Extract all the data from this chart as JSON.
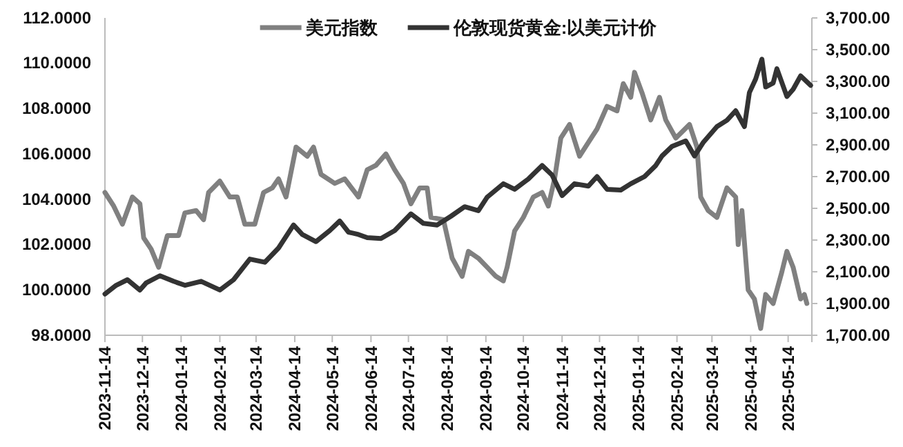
{
  "chart_data": {
    "type": "line",
    "legend": "top",
    "grid": false,
    "marker": "none",
    "line_style": "solid",
    "xlim": [
      "2023-11-14",
      "2025-06-02"
    ],
    "xticks": [
      {
        "value": "2023-11-14",
        "label": "2023-11-14"
      },
      {
        "value": "2023-12-14",
        "label": "2023-12-14"
      },
      {
        "value": "2024-01-14",
        "label": "2024-01-14"
      },
      {
        "value": "2024-02-14",
        "label": "2024-02-14"
      },
      {
        "value": "2024-03-14",
        "label": "2024-03-14"
      },
      {
        "value": "2024-04-14",
        "label": "2024-04-14"
      },
      {
        "value": "2024-05-14",
        "label": "2024-05-14"
      },
      {
        "value": "2024-06-14",
        "label": "2024-06-14"
      },
      {
        "value": "2024-07-14",
        "label": "2024-07-14"
      },
      {
        "value": "2024-08-14",
        "label": "2024-08-14"
      },
      {
        "value": "2024-09-14",
        "label": "2024-09-14"
      },
      {
        "value": "2024-10-14",
        "label": "2024-10-14"
      },
      {
        "value": "2024-11-14",
        "label": "2024-11-14"
      },
      {
        "value": "2024-12-14",
        "label": "2024-12-14"
      },
      {
        "value": "2025-01-14",
        "label": "2025-01-14"
      },
      {
        "value": "2025-02-14",
        "label": "2025-02-14"
      },
      {
        "value": "2025-03-14",
        "label": "2025-03-14"
      },
      {
        "value": "2025-04-14",
        "label": "2025-04-14"
      },
      {
        "value": "2025-05-14",
        "label": "2025-05-14"
      }
    ],
    "ylim": [
      98,
      112
    ],
    "yticks": [
      {
        "value": 98,
        "label": "98.0000"
      },
      {
        "value": 100,
        "label": "100.0000"
      },
      {
        "value": 102,
        "label": "102.0000"
      },
      {
        "value": 104,
        "label": "104.0000"
      },
      {
        "value": 106,
        "label": "106.0000"
      },
      {
        "value": 108,
        "label": "108.0000"
      },
      {
        "value": 110,
        "label": "110.0000"
      },
      {
        "value": 112,
        "label": "112.0000"
      }
    ],
    "y2lim": [
      1700,
      3700
    ],
    "y2ticks": [
      {
        "value": 1700,
        "label": "1,700.00"
      },
      {
        "value": 1900,
        "label": "1,900.00"
      },
      {
        "value": 2100,
        "label": "2,100.00"
      },
      {
        "value": 2300,
        "label": "2,300.00"
      },
      {
        "value": 2500,
        "label": "2,500.00"
      },
      {
        "value": 2700,
        "label": "2,700.00"
      },
      {
        "value": 2900,
        "label": "2,900.00"
      },
      {
        "value": 3100,
        "label": "3,100.00"
      },
      {
        "value": 3300,
        "label": "3,300.00"
      },
      {
        "value": 3500,
        "label": "3,500.00"
      },
      {
        "value": 3700,
        "label": "3,700.00"
      }
    ],
    "series": [
      {
        "name": "美元指数",
        "color": "#808080",
        "axis": "y",
        "x": [
          "2023-11-14",
          "2023-11-21",
          "2023-11-28",
          "2023-12-06",
          "2023-12-12",
          "2023-12-15",
          "2023-12-21",
          "2023-12-27",
          "2024-01-03",
          "2024-01-12",
          "2024-01-17",
          "2024-01-26",
          "2024-02-01",
          "2024-02-05",
          "2024-02-14",
          "2024-02-22",
          "2024-02-28",
          "2024-03-05",
          "2024-03-13",
          "2024-03-20",
          "2024-03-27",
          "2024-04-01",
          "2024-04-07",
          "2024-04-15",
          "2024-04-24",
          "2024-04-29",
          "2024-05-05",
          "2024-05-16",
          "2024-05-24",
          "2024-06-04",
          "2024-06-11",
          "2024-06-18",
          "2024-06-26",
          "2024-07-03",
          "2024-07-10",
          "2024-07-16",
          "2024-07-23",
          "2024-07-29",
          "2024-08-01",
          "2024-08-11",
          "2024-08-18",
          "2024-08-26",
          "2024-08-31",
          "2024-09-08",
          "2024-09-15",
          "2024-09-22",
          "2024-09-28",
          "2024-10-01",
          "2024-10-07",
          "2024-10-14",
          "2024-10-22",
          "2024-10-29",
          "2024-11-03",
          "2024-11-08",
          "2024-11-13",
          "2024-11-20",
          "2024-11-28",
          "2024-12-05",
          "2024-12-12",
          "2024-12-20",
          "2024-12-28",
          "2025-01-02",
          "2025-01-08",
          "2025-01-11",
          "2025-01-17",
          "2025-01-24",
          "2025-01-31",
          "2025-02-05",
          "2025-02-13",
          "2025-02-24",
          "2025-03-02",
          "2025-03-05",
          "2025-03-11",
          "2025-03-18",
          "2025-03-26",
          "2025-04-02",
          "2025-04-04",
          "2025-04-07",
          "2025-04-12",
          "2025-04-17",
          "2025-04-22",
          "2025-04-26",
          "2025-05-02",
          "2025-05-09",
          "2025-05-13",
          "2025-05-18",
          "2025-05-24",
          "2025-05-27",
          "2025-05-29"
        ],
        "values": [
          104.3,
          103.7,
          102.9,
          104.1,
          103.8,
          102.3,
          101.8,
          101.0,
          102.4,
          102.4,
          103.4,
          103.5,
          103.1,
          104.3,
          104.8,
          104.1,
          104.1,
          102.9,
          102.9,
          104.3,
          104.5,
          104.9,
          104.1,
          106.3,
          105.9,
          106.3,
          105.1,
          104.7,
          104.9,
          104.1,
          105.3,
          105.5,
          106.0,
          105.3,
          104.7,
          103.8,
          104.5,
          104.5,
          103.2,
          103.1,
          101.4,
          100.6,
          101.7,
          101.4,
          101.0,
          100.6,
          100.4,
          101.0,
          102.6,
          103.2,
          104.1,
          104.3,
          103.7,
          104.9,
          106.7,
          107.3,
          105.9,
          106.5,
          107.1,
          108.1,
          107.9,
          109.1,
          108.5,
          109.6,
          108.7,
          107.5,
          108.5,
          107.5,
          106.7,
          107.3,
          106.3,
          104.1,
          103.5,
          103.2,
          104.5,
          104.1,
          102.0,
          103.5,
          100.0,
          99.6,
          98.3,
          99.8,
          99.4,
          100.8,
          101.7,
          101.0,
          99.6,
          99.8,
          99.4
        ]
      },
      {
        "name": "伦敦现货黄金:以美元计价",
        "color": "#333333",
        "axis": "y2",
        "x": [
          "2023-11-14",
          "2023-11-23",
          "2023-12-02",
          "2023-12-12",
          "2023-12-17",
          "2023-12-28",
          "2024-01-08",
          "2024-01-17",
          "2024-01-30",
          "2024-02-14",
          "2024-02-25",
          "2024-03-09",
          "2024-03-21",
          "2024-04-01",
          "2024-04-13",
          "2024-04-20",
          "2024-05-01",
          "2024-05-12",
          "2024-05-20",
          "2024-05-27",
          "2024-06-04",
          "2024-06-11",
          "2024-06-22",
          "2024-07-03",
          "2024-07-16",
          "2024-07-26",
          "2024-08-06",
          "2024-08-17",
          "2024-08-28",
          "2024-09-08",
          "2024-09-15",
          "2024-09-28",
          "2024-10-07",
          "2024-10-18",
          "2024-10-29",
          "2024-11-06",
          "2024-11-14",
          "2024-11-24",
          "2024-12-05",
          "2024-12-12",
          "2024-12-20",
          "2024-12-31",
          "2025-01-08",
          "2025-01-19",
          "2025-01-28",
          "2025-02-02",
          "2025-02-10",
          "2025-02-21",
          "2025-02-28",
          "2025-03-07",
          "2025-03-18",
          "2025-03-26",
          "2025-04-02",
          "2025-04-09",
          "2025-04-13",
          "2025-04-18",
          "2025-04-23",
          "2025-04-26",
          "2025-05-02",
          "2025-05-05",
          "2025-05-13",
          "2025-05-18",
          "2025-05-24",
          "2025-06-01"
        ],
        "values": [
          1960,
          2015,
          2050,
          1985,
          2030,
          2075,
          2040,
          2015,
          2040,
          1985,
          2050,
          2180,
          2160,
          2250,
          2395,
          2335,
          2290,
          2360,
          2420,
          2350,
          2335,
          2315,
          2310,
          2360,
          2465,
          2405,
          2395,
          2450,
          2510,
          2485,
          2570,
          2655,
          2620,
          2685,
          2770,
          2710,
          2580,
          2655,
          2640,
          2700,
          2620,
          2615,
          2655,
          2700,
          2770,
          2830,
          2890,
          2925,
          2830,
          2915,
          3015,
          3055,
          3115,
          3015,
          3230,
          3315,
          3440,
          3265,
          3290,
          3380,
          3205,
          3250,
          3335,
          3275
        ]
      }
    ]
  }
}
